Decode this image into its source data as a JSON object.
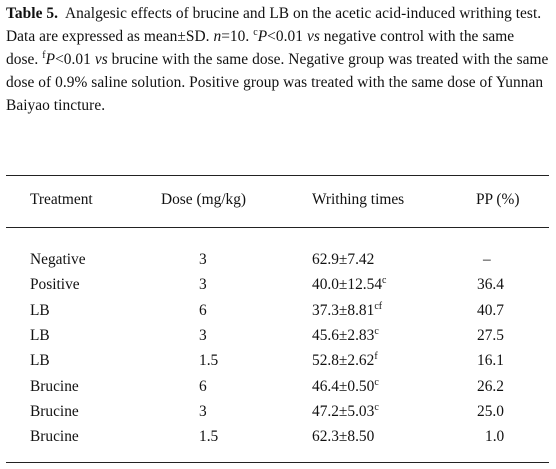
{
  "caption": {
    "label": "Table 5.",
    "text_1": "Analgesic effects of brucine and LB on the acetic acid-induced writhing test. Data are expressed as mean±SD. ",
    "n_italic": "n",
    "text_2": "=10. ",
    "sup_c": "c",
    "p1_italic": "P",
    "text_3": "<0.01 ",
    "vs1_italic": "vs",
    "text_4": " negative control with the same dose. ",
    "sup_f": "f",
    "p2_italic": "P",
    "text_5": "<0.01 ",
    "vs2_italic": "vs",
    "text_6": " brucine with the same dose. Negative group was treated with the same dose of 0.9% saline solution. Positive group was treated with the same dose of Yunnan Baiyao tincture."
  },
  "table": {
    "headers": {
      "treatment": "Treatment",
      "dose": "Dose (mg/kg)",
      "writhing": "Writhing times",
      "pp": "PP (%)"
    },
    "rows": [
      {
        "treatment": "Negative",
        "dose": "3",
        "writhing": "62.9±7.42",
        "sup": "",
        "pp": "–"
      },
      {
        "treatment": "Positive",
        "dose": "3",
        "writhing": "40.0±12.54",
        "sup": "c",
        "pp": "36.4"
      },
      {
        "treatment": "LB",
        "dose": "6",
        "writhing": "37.3±8.81",
        "sup": "cf",
        "pp": "40.7"
      },
      {
        "treatment": "LB",
        "dose": "3",
        "writhing": "45.6±2.83",
        "sup": "c",
        "pp": "27.5"
      },
      {
        "treatment": "LB",
        "dose": "1.5",
        "writhing": "52.8±2.62",
        "sup": "f",
        "pp": "16.1"
      },
      {
        "treatment": "Brucine",
        "dose": "6",
        "writhing": "46.4±0.50",
        "sup": "c",
        "pp": "26.2"
      },
      {
        "treatment": "Brucine",
        "dose": "3",
        "writhing": "47.2±5.03",
        "sup": "c",
        "pp": "25.0"
      },
      {
        "treatment": "Brucine",
        "dose": "1.5",
        "writhing": "62.3±8.50",
        "sup": "",
        "pp": "1.0"
      }
    ]
  }
}
